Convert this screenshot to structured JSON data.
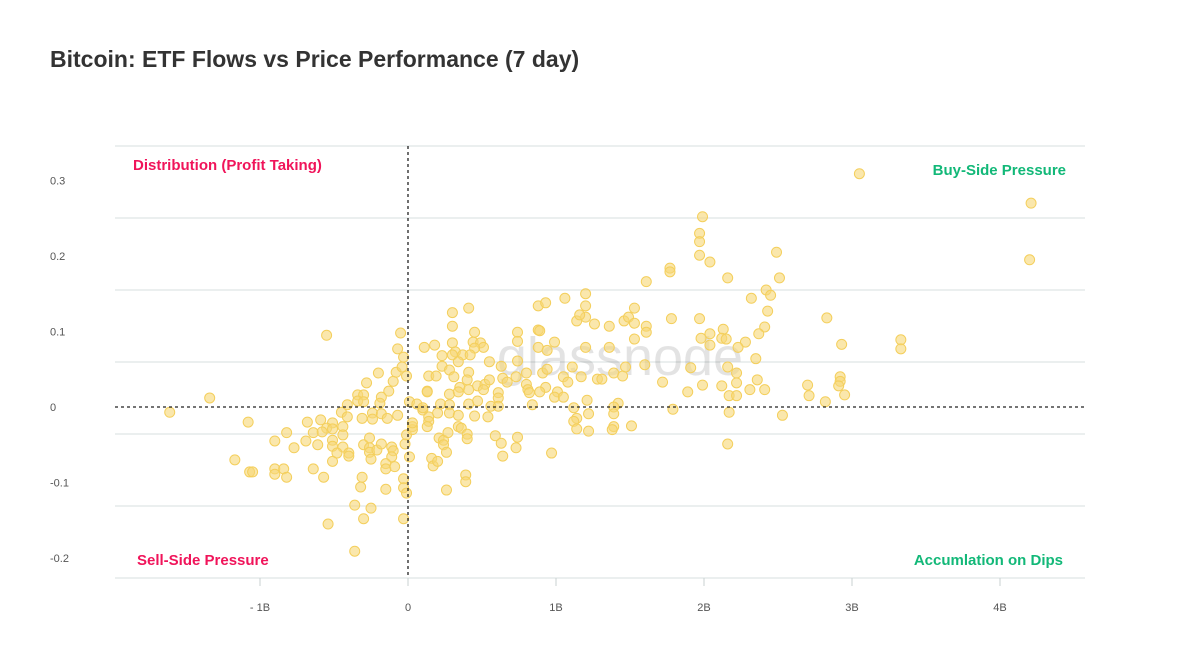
{
  "chart_data": {
    "type": "scatter",
    "title": "Bitcoin: ETF Flows vs Price Performance (7 day)",
    "xlabel": "",
    "ylabel": "",
    "xlim": [
      -2.0,
      4.6
    ],
    "ylim": [
      -0.23,
      0.35
    ],
    "grid": true,
    "x_unit": "B",
    "x_ticks": [
      {
        "value": -1,
        "label": "- 1B"
      },
      {
        "value": 0,
        "label": "0"
      },
      {
        "value": 1,
        "label": "1B"
      },
      {
        "value": 2,
        "label": "2B"
      },
      {
        "value": 3,
        "label": "3B"
      },
      {
        "value": 4,
        "label": "4B"
      }
    ],
    "y_ticks": [
      {
        "value": 0.3,
        "label": "0.3"
      },
      {
        "value": 0.2,
        "label": "0.2"
      },
      {
        "value": 0.1,
        "label": "0.1"
      },
      {
        "value": 0,
        "label": "0"
      },
      {
        "value": -0.1,
        "label": "-0.1"
      },
      {
        "value": -0.2,
        "label": "-0.2"
      }
    ],
    "reference_lines": {
      "x": 0,
      "y": 0
    },
    "quadrant_labels": {
      "top_left": "Distribution (Profit Taking)",
      "top_right": "Buy-Side Pressure",
      "bottom_left": "Sell-Side Pressure",
      "bottom_right": "Accumlation on Dips"
    },
    "watermark": "glassnode",
    "colors": {
      "point": "#f7d774",
      "point_stroke": "#f4cf5c",
      "sell": "#f0145a",
      "buy": "#12b878",
      "title": "#333333"
    },
    "points": [
      [
        -1.61,
        -0.007
      ],
      [
        -1.34,
        0.012
      ],
      [
        -1.08,
        -0.02
      ],
      [
        -0.55,
        0.095
      ],
      [
        -0.05,
        0.098
      ],
      [
        -0.07,
        0.077
      ],
      [
        -0.03,
        0.066
      ],
      [
        0.11,
        0.079
      ],
      [
        0.18,
        0.082
      ],
      [
        -0.2,
        0.045
      ],
      [
        -0.08,
        0.046
      ],
      [
        -0.04,
        0.053
      ],
      [
        -0.01,
        0.041
      ],
      [
        0.14,
        0.041
      ],
      [
        0.19,
        0.041
      ],
      [
        -0.28,
        0.032
      ],
      [
        -0.1,
        0.034
      ],
      [
        -0.13,
        0.021
      ],
      [
        0.13,
        0.021
      ],
      [
        -0.34,
        0.016
      ],
      [
        -0.3,
        0.016
      ],
      [
        -0.34,
        0.008
      ],
      [
        -0.3,
        0.007
      ],
      [
        -0.18,
        0.013
      ],
      [
        -0.19,
        0.005
      ],
      [
        -0.41,
        0.003
      ],
      [
        -0.45,
        -0.007
      ],
      [
        -0.41,
        -0.013
      ],
      [
        -0.31,
        -0.015
      ],
      [
        -0.24,
        -0.008
      ],
      [
        -0.24,
        -0.016
      ],
      [
        -0.18,
        -0.009
      ],
      [
        -0.14,
        -0.015
      ],
      [
        -0.07,
        -0.011
      ],
      [
        0.01,
        0.007
      ],
      [
        0.06,
        0.004
      ],
      [
        0.1,
        -0.004
      ],
      [
        0.14,
        -0.013
      ],
      [
        -0.68,
        -0.02
      ],
      [
        -0.59,
        -0.017
      ],
      [
        -0.51,
        -0.021
      ],
      [
        -0.55,
        -0.028
      ],
      [
        -0.51,
        -0.029
      ],
      [
        -0.44,
        -0.026
      ],
      [
        -0.82,
        -0.034
      ],
      [
        -0.64,
        -0.034
      ],
      [
        -0.58,
        -0.033
      ],
      [
        -0.44,
        -0.037
      ],
      [
        -0.9,
        -0.045
      ],
      [
        -0.69,
        -0.045
      ],
      [
        -0.77,
        -0.054
      ],
      [
        -0.61,
        -0.05
      ],
      [
        -0.51,
        -0.044
      ],
      [
        -0.51,
        -0.052
      ],
      [
        -0.44,
        -0.053
      ],
      [
        -1.17,
        -0.07
      ],
      [
        -1.07,
        -0.086
      ],
      [
        -1.05,
        -0.086
      ],
      [
        -0.9,
        -0.082
      ],
      [
        -0.9,
        -0.089
      ],
      [
        -0.84,
        -0.082
      ],
      [
        -0.82,
        -0.093
      ],
      [
        -0.64,
        -0.082
      ],
      [
        -0.57,
        -0.093
      ],
      [
        -0.48,
        -0.061
      ],
      [
        -0.4,
        -0.061
      ],
      [
        -0.4,
        -0.065
      ],
      [
        -0.51,
        -0.072
      ],
      [
        -0.3,
        -0.05
      ],
      [
        -0.26,
        -0.041
      ],
      [
        -0.26,
        -0.054
      ],
      [
        -0.26,
        -0.06
      ],
      [
        -0.25,
        -0.069
      ],
      [
        -0.21,
        -0.057
      ],
      [
        -0.18,
        -0.049
      ],
      [
        -0.11,
        -0.053
      ],
      [
        -0.1,
        -0.058
      ],
      [
        -0.11,
        -0.066
      ],
      [
        -0.15,
        -0.075
      ],
      [
        -0.15,
        -0.082
      ],
      [
        -0.09,
        -0.079
      ],
      [
        -0.31,
        -0.093
      ],
      [
        -0.32,
        -0.106
      ],
      [
        -0.15,
        -0.109
      ],
      [
        -0.36,
        -0.13
      ],
      [
        -0.25,
        -0.134
      ],
      [
        -0.3,
        -0.148
      ],
      [
        -0.54,
        -0.155
      ],
      [
        -0.36,
        -0.191
      ],
      [
        -0.03,
        -0.095
      ],
      [
        -0.03,
        -0.107
      ],
      [
        -0.01,
        -0.114
      ],
      [
        -0.03,
        -0.148
      ],
      [
        -0.01,
        -0.037
      ],
      [
        -0.02,
        -0.049
      ],
      [
        0.01,
        -0.066
      ],
      [
        0.03,
        -0.026
      ],
      [
        0.03,
        -0.03
      ],
      [
        0.21,
        -0.041
      ],
      [
        0.24,
        -0.044
      ],
      [
        0.24,
        -0.05
      ],
      [
        0.26,
        -0.06
      ],
      [
        0.16,
        -0.068
      ],
      [
        0.17,
        -0.078
      ],
      [
        0.2,
        -0.072
      ],
      [
        0.26,
        -0.11
      ],
      [
        1.06,
        0.144
      ],
      [
        1.2,
        0.15
      ],
      [
        1.2,
        0.134
      ],
      [
        1.2,
        0.119
      ],
      [
        0.88,
        0.134
      ],
      [
        0.93,
        0.138
      ],
      [
        1.14,
        0.114
      ],
      [
        1.16,
        0.122
      ],
      [
        1.26,
        0.11
      ],
      [
        1.36,
        0.107
      ],
      [
        1.46,
        0.114
      ],
      [
        1.49,
        0.119
      ],
      [
        1.53,
        0.131
      ],
      [
        1.53,
        0.111
      ],
      [
        1.61,
        0.107
      ],
      [
        1.61,
        0.099
      ],
      [
        1.53,
        0.09
      ],
      [
        1.78,
        0.117
      ],
      [
        0.3,
        0.125
      ],
      [
        0.41,
        0.131
      ],
      [
        0.3,
        0.107
      ],
      [
        0.45,
        0.099
      ],
      [
        0.44,
        0.086
      ],
      [
        0.49,
        0.085
      ],
      [
        0.51,
        0.079
      ],
      [
        0.45,
        0.078
      ],
      [
        0.74,
        0.099
      ],
      [
        0.74,
        0.087
      ],
      [
        0.88,
        0.102
      ],
      [
        0.89,
        0.101
      ],
      [
        0.99,
        0.086
      ],
      [
        0.88,
        0.079
      ],
      [
        0.94,
        0.075
      ],
      [
        1.2,
        0.079
      ],
      [
        1.36,
        0.079
      ],
      [
        0.3,
        0.085
      ],
      [
        0.32,
        0.073
      ],
      [
        0.3,
        0.069
      ],
      [
        0.23,
        0.068
      ],
      [
        0.37,
        0.069
      ],
      [
        0.42,
        0.069
      ],
      [
        0.34,
        0.06
      ],
      [
        0.23,
        0.054
      ],
      [
        0.28,
        0.049
      ],
      [
        0.41,
        0.046
      ],
      [
        0.31,
        0.04
      ],
      [
        0.55,
        0.06
      ],
      [
        0.63,
        0.054
      ],
      [
        0.74,
        0.061
      ],
      [
        0.8,
        0.045
      ],
      [
        0.91,
        0.045
      ],
      [
        0.94,
        0.05
      ],
      [
        1.11,
        0.053
      ],
      [
        1.05,
        0.04
      ],
      [
        1.08,
        0.033
      ],
      [
        1.17,
        0.04
      ],
      [
        1.28,
        0.037
      ],
      [
        1.31,
        0.037
      ],
      [
        1.39,
        0.045
      ],
      [
        1.45,
        0.041
      ],
      [
        1.47,
        0.053
      ],
      [
        1.6,
        0.056
      ],
      [
        1.72,
        0.033
      ],
      [
        1.91,
        0.052
      ],
      [
        0.4,
        0.036
      ],
      [
        0.35,
        0.026
      ],
      [
        0.47,
        0.028
      ],
      [
        0.52,
        0.03
      ],
      [
        0.55,
        0.036
      ],
      [
        0.64,
        0.038
      ],
      [
        0.67,
        0.033
      ],
      [
        0.73,
        0.04
      ],
      [
        0.8,
        0.03
      ],
      [
        0.93,
        0.026
      ],
      [
        0.89,
        0.02
      ],
      [
        1.01,
        0.02
      ],
      [
        0.81,
        0.023
      ],
      [
        0.82,
        0.019
      ],
      [
        0.99,
        0.013
      ],
      [
        1.05,
        0.013
      ],
      [
        1.21,
        0.009
      ],
      [
        1.42,
        0.005
      ],
      [
        1.89,
        0.02
      ],
      [
        0.13,
        0.02
      ],
      [
        0.28,
        0.017
      ],
      [
        0.34,
        0.02
      ],
      [
        0.41,
        0.023
      ],
      [
        0.51,
        0.023
      ],
      [
        0.47,
        0.008
      ],
      [
        0.41,
        0.004
      ],
      [
        0.61,
        0.019
      ],
      [
        0.61,
        0.012
      ],
      [
        0.56,
        0.001
      ],
      [
        0.61,
        0.001
      ],
      [
        0.1,
        -0.001
      ],
      [
        0.22,
        0.004
      ],
      [
        0.28,
        0.003
      ],
      [
        0.2,
        -0.008
      ],
      [
        0.28,
        -0.008
      ],
      [
        0.34,
        -0.011
      ],
      [
        0.45,
        -0.012
      ],
      [
        0.54,
        -0.013
      ],
      [
        0.84,
        0.003
      ],
      [
        1.12,
        -0.001
      ],
      [
        1.39,
        0.0
      ],
      [
        1.79,
        -0.003
      ],
      [
        1.14,
        -0.015
      ],
      [
        1.12,
        -0.019
      ],
      [
        1.22,
        -0.009
      ],
      [
        1.14,
        -0.029
      ],
      [
        1.22,
        -0.032
      ],
      [
        1.39,
        -0.009
      ],
      [
        1.39,
        -0.026
      ],
      [
        1.38,
        -0.03
      ],
      [
        1.51,
        -0.025
      ],
      [
        0.03,
        -0.021
      ],
      [
        0.14,
        -0.019
      ],
      [
        0.13,
        -0.026
      ],
      [
        0.34,
        -0.026
      ],
      [
        0.36,
        -0.028
      ],
      [
        0.4,
        -0.036
      ],
      [
        0.4,
        -0.042
      ],
      [
        0.27,
        -0.034
      ],
      [
        0.59,
        -0.038
      ],
      [
        0.63,
        -0.048
      ],
      [
        0.74,
        -0.04
      ],
      [
        0.73,
        -0.054
      ],
      [
        0.64,
        -0.065
      ],
      [
        0.97,
        -0.061
      ],
      [
        0.39,
        -0.09
      ],
      [
        0.39,
        -0.099
      ],
      [
        3.05,
        0.309
      ],
      [
        4.21,
        0.27
      ],
      [
        4.2,
        0.195
      ],
      [
        1.99,
        0.252
      ],
      [
        1.97,
        0.23
      ],
      [
        1.97,
        0.219
      ],
      [
        1.97,
        0.201
      ],
      [
        2.04,
        0.192
      ],
      [
        2.49,
        0.205
      ],
      [
        2.51,
        0.171
      ],
      [
        2.16,
        0.171
      ],
      [
        2.42,
        0.155
      ],
      [
        2.45,
        0.148
      ],
      [
        2.32,
        0.144
      ],
      [
        2.43,
        0.127
      ],
      [
        2.41,
        0.106
      ],
      [
        2.37,
        0.097
      ],
      [
        2.28,
        0.086
      ],
      [
        2.23,
        0.079
      ],
      [
        1.97,
        0.117
      ],
      [
        1.98,
        0.091
      ],
      [
        2.04,
        0.097
      ],
      [
        2.04,
        0.082
      ],
      [
        2.13,
        0.103
      ],
      [
        2.12,
        0.091
      ],
      [
        2.15,
        0.09
      ],
      [
        2.83,
        0.118
      ],
      [
        2.93,
        0.083
      ],
      [
        3.33,
        0.089
      ],
      [
        3.33,
        0.077
      ],
      [
        2.35,
        0.064
      ],
      [
        2.16,
        0.053
      ],
      [
        2.22,
        0.045
      ],
      [
        1.99,
        0.029
      ],
      [
        2.12,
        0.028
      ],
      [
        2.17,
        0.015
      ],
      [
        2.22,
        0.032
      ],
      [
        2.22,
        0.015
      ],
      [
        2.31,
        0.023
      ],
      [
        2.36,
        0.036
      ],
      [
        2.41,
        0.023
      ],
      [
        2.17,
        -0.007
      ],
      [
        2.53,
        -0.011
      ],
      [
        2.7,
        0.029
      ],
      [
        2.71,
        0.015
      ],
      [
        2.82,
        0.007
      ],
      [
        2.92,
        0.04
      ],
      [
        2.92,
        0.034
      ],
      [
        2.91,
        0.028
      ],
      [
        2.95,
        0.016
      ],
      [
        1.77,
        0.184
      ],
      [
        1.77,
        0.179
      ],
      [
        1.61,
        0.166
      ],
      [
        2.16,
        -0.049
      ]
    ]
  }
}
